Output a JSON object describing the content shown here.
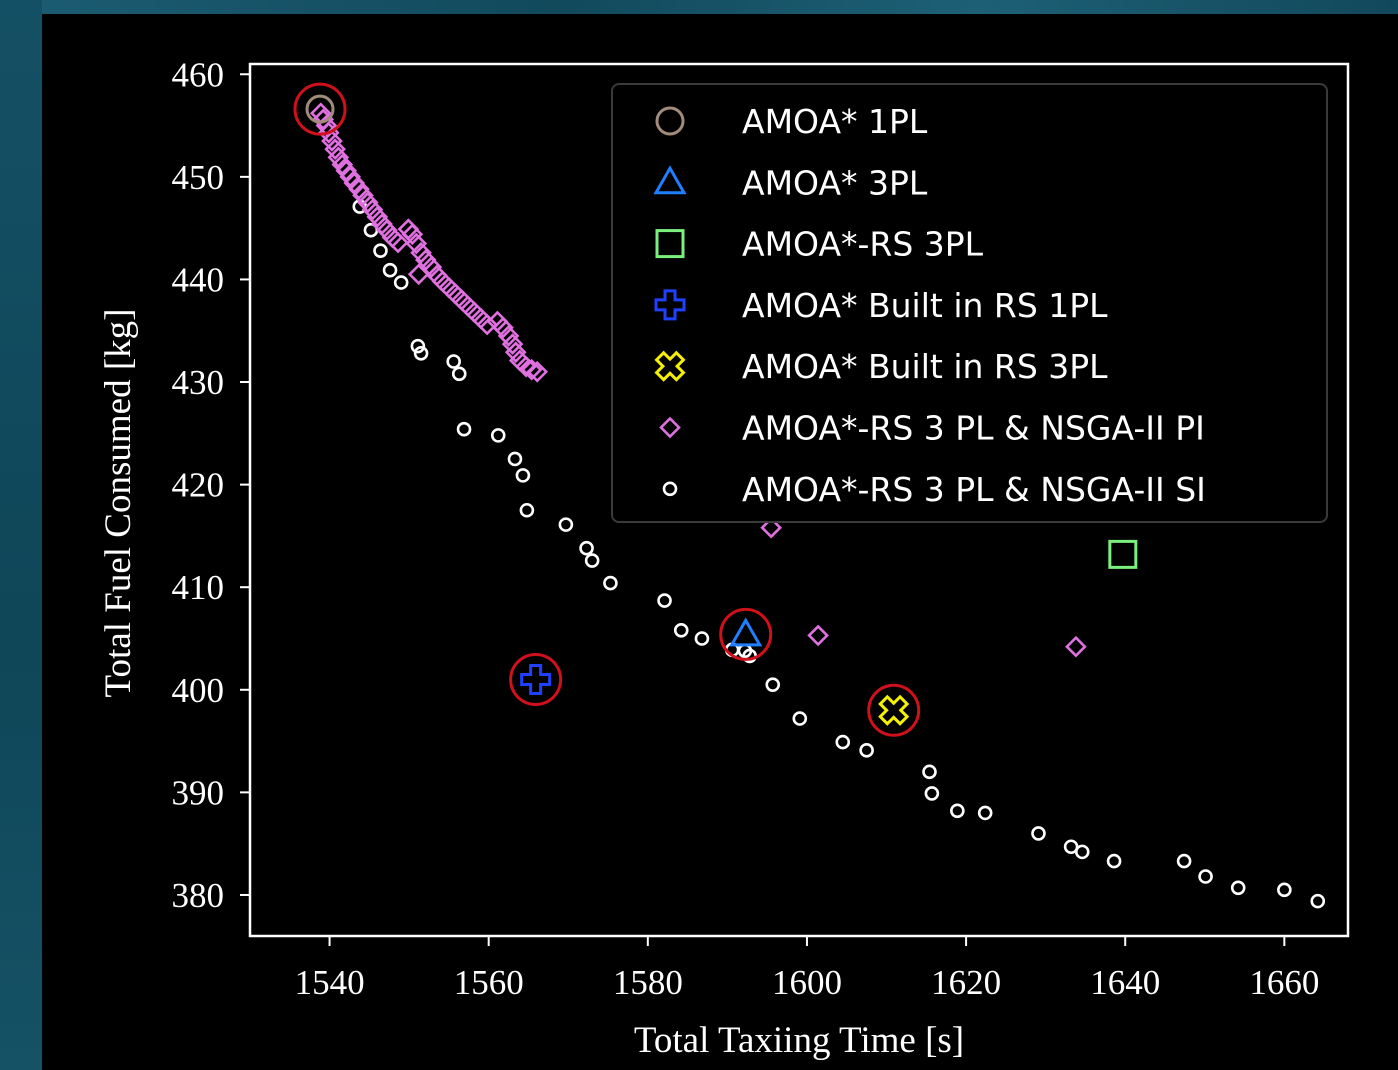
{
  "chart_data": {
    "type": "scatter",
    "title": "",
    "xlabel": "Total Taxiing Time [s]",
    "ylabel": "Total Fuel Consumed [kg]",
    "xlim": [
      1530,
      1668
    ],
    "ylim": [
      376,
      461
    ],
    "xticks": [
      1540,
      1560,
      1580,
      1600,
      1620,
      1640,
      1660
    ],
    "yticks": [
      380,
      390,
      400,
      410,
      420,
      430,
      440,
      450,
      460
    ],
    "grid": false,
    "legend_position": "top-right",
    "series": [
      {
        "name": "AMOA* 1PL",
        "marker": "circle",
        "color": "#a08c78",
        "points": [
          [
            1538.8,
            456.6
          ]
        ]
      },
      {
        "name": "AMOA* 3PL",
        "marker": "triangle",
        "color": "#1f7fff",
        "points": [
          [
            1592.3,
            405.4
          ]
        ]
      },
      {
        "name": "AMOA*-RS 3PL",
        "marker": "square",
        "color": "#7cf07c",
        "points": [
          [
            1639.7,
            413.2
          ]
        ]
      },
      {
        "name": "AMOA* Built in RS 1PL",
        "marker": "plus",
        "color": "#2040ff",
        "points": [
          [
            1565.9,
            401.0
          ]
        ]
      },
      {
        "name": "AMOA* Built in RS 3PL",
        "marker": "x-cross",
        "color": "#f5f000",
        "points": [
          [
            1610.9,
            398.0
          ]
        ]
      },
      {
        "name": "AMOA*-RS 3 PL & NSGA-II PI",
        "marker": "diamond",
        "color": "#e070e0",
        "points": [
          [
            1538.9,
            456.2
          ],
          [
            1539.2,
            455.6
          ],
          [
            1539.6,
            455.0
          ],
          [
            1539.9,
            454.3
          ],
          [
            1540.3,
            453.5
          ],
          [
            1540.7,
            452.7
          ],
          [
            1541.1,
            451.9
          ],
          [
            1541.6,
            451.2
          ],
          [
            1542.1,
            450.6
          ],
          [
            1542.6,
            450.0
          ],
          [
            1543.1,
            449.4
          ],
          [
            1543.7,
            448.8
          ],
          [
            1544.2,
            448.2
          ],
          [
            1544.8,
            447.5
          ],
          [
            1545.4,
            446.8
          ],
          [
            1546.0,
            446.1
          ],
          [
            1546.6,
            445.4
          ],
          [
            1547.2,
            444.8
          ],
          [
            1547.9,
            444.1
          ],
          [
            1548.6,
            443.6
          ],
          [
            1549.9,
            444.9
          ],
          [
            1550.4,
            444.4
          ],
          [
            1550.9,
            443.5
          ],
          [
            1551.5,
            442.6
          ],
          [
            1552.1,
            441.9
          ],
          [
            1552.8,
            441.2
          ],
          [
            1551.2,
            440.5
          ],
          [
            1553.5,
            440.4
          ],
          [
            1554.2,
            439.8
          ],
          [
            1555.0,
            439.2
          ],
          [
            1555.8,
            438.6
          ],
          [
            1556.6,
            438.0
          ],
          [
            1557.4,
            437.4
          ],
          [
            1558.2,
            436.8
          ],
          [
            1559.0,
            436.2
          ],
          [
            1559.8,
            435.6
          ],
          [
            1561.1,
            435.9
          ],
          [
            1561.8,
            435.3
          ],
          [
            1562.5,
            434.5
          ],
          [
            1563.0,
            433.7
          ],
          [
            1563.4,
            432.9
          ],
          [
            1563.9,
            432.1
          ],
          [
            1564.7,
            431.5
          ],
          [
            1565.4,
            431.2
          ],
          [
            1566.1,
            431.0
          ],
          [
            1595.5,
            415.8
          ],
          [
            1601.4,
            405.3
          ],
          [
            1633.8,
            404.2
          ]
        ]
      },
      {
        "name": "AMOA*-RS 3 PL & NSGA-II SI",
        "marker": "small-circle",
        "color": "#ffffff",
        "points": [
          [
            1543.8,
            447.1
          ],
          [
            1545.2,
            444.8
          ],
          [
            1546.4,
            442.8
          ],
          [
            1547.6,
            440.9
          ],
          [
            1549.0,
            439.7
          ],
          [
            1551.1,
            433.5
          ],
          [
            1551.5,
            432.8
          ],
          [
            1555.6,
            432.0
          ],
          [
            1556.3,
            430.8
          ],
          [
            1556.9,
            425.4
          ],
          [
            1561.2,
            424.8
          ],
          [
            1563.3,
            422.5
          ],
          [
            1564.3,
            420.9
          ],
          [
            1564.8,
            417.5
          ],
          [
            1569.7,
            416.1
          ],
          [
            1572.3,
            413.8
          ],
          [
            1573.0,
            412.6
          ],
          [
            1575.3,
            410.4
          ],
          [
            1582.1,
            408.7
          ],
          [
            1584.2,
            405.8
          ],
          [
            1586.8,
            405.0
          ],
          [
            1590.6,
            403.9
          ],
          [
            1592.2,
            403.8
          ],
          [
            1592.8,
            403.3
          ],
          [
            1595.7,
            400.5
          ],
          [
            1599.1,
            397.2
          ],
          [
            1604.5,
            394.9
          ],
          [
            1607.5,
            394.1
          ],
          [
            1615.4,
            392.0
          ],
          [
            1615.7,
            389.9
          ],
          [
            1618.9,
            388.2
          ],
          [
            1622.4,
            388.0
          ],
          [
            1629.1,
            386.0
          ],
          [
            1633.2,
            384.7
          ],
          [
            1634.6,
            384.2
          ],
          [
            1638.6,
            383.3
          ],
          [
            1647.4,
            383.3
          ],
          [
            1650.1,
            381.8
          ],
          [
            1654.2,
            380.7
          ],
          [
            1660.0,
            380.5
          ],
          [
            1664.2,
            379.4
          ]
        ]
      }
    ],
    "highlights": [
      [
        1538.8,
        456.6
      ],
      [
        1565.9,
        401.0
      ],
      [
        1592.3,
        405.4
      ],
      [
        1610.9,
        398.0
      ]
    ],
    "highlight_color": "#d0101a"
  }
}
